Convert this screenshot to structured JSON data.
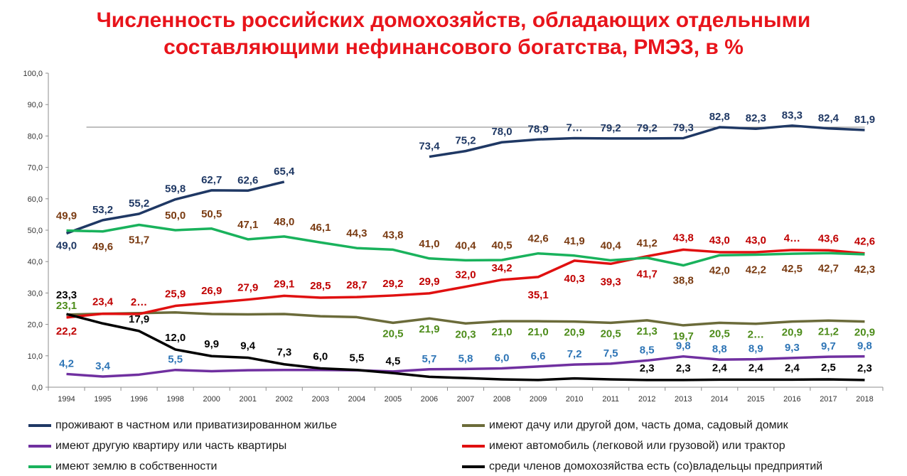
{
  "title": {
    "line1": "Численность российских домохозяйств, обладающих отдельными",
    "line2": "составляющими нефинансового богатства, РМЭЗ, в %"
  },
  "chart_data": {
    "type": "line",
    "x": [
      "1994",
      "1995",
      "1996",
      "1998",
      "2000",
      "2001",
      "2002",
      "2003",
      "2004",
      "2005",
      "2006",
      "2007",
      "2008",
      "2009",
      "2010",
      "2011",
      "2012",
      "2013",
      "2014",
      "2015",
      "2016",
      "2017",
      "2018"
    ],
    "ylim": [
      0,
      100
    ],
    "yticks": [
      "0,0",
      "10,0",
      "20,0",
      "30,0",
      "40,0",
      "50,0",
      "60,0",
      "70,0",
      "80,0",
      "90,0",
      "100,0"
    ],
    "grid": false,
    "legend_position": "bottom",
    "series": [
      {
        "name": "проживают в частном или приватизированном жилье",
        "color": "#1f3864",
        "values": [
          49.0,
          53.2,
          55.2,
          59.8,
          62.7,
          62.6,
          65.4,
          null,
          null,
          null,
          73.4,
          75.2,
          78.0,
          78.9,
          79.3,
          79.2,
          79.2,
          79.3,
          82.8,
          82.3,
          83.3,
          82.4,
          81.9
        ],
        "labels": [
          "49,0",
          "53,2",
          "55,2",
          "59,8",
          "62,7",
          "62,6",
          "65,4",
          "",
          "",
          "",
          "73,4",
          "75,2",
          "78,0",
          "78,9",
          "7…",
          "79,2",
          "79,2",
          "79,3",
          "82,8",
          "82,3",
          "83,3",
          "82,4",
          "81,9"
        ]
      },
      {
        "name": "имеют дачу или другой дом, часть дома, садовый домик",
        "color": "#6b6b3a",
        "values": [
          23.1,
          23.4,
          23.6,
          23.8,
          23.3,
          23.2,
          23.3,
          22.6,
          22.3,
          20.5,
          21.9,
          20.3,
          21.0,
          21.0,
          20.9,
          20.5,
          21.3,
          19.7,
          20.5,
          20.2,
          20.9,
          21.2,
          20.9
        ],
        "labels": [
          "23,1",
          "",
          "",
          "",
          "",
          "",
          "",
          "",
          "",
          "20,5",
          "21,9",
          "20,3",
          "21,0",
          "21,0",
          "20,9",
          "20,5",
          "21,3",
          "19,7",
          "20,5",
          "2…",
          "20,9",
          "21,2",
          "20,9"
        ]
      },
      {
        "name": "имеют другую квартиру или часть квартиры",
        "color": "#7030a0",
        "values": [
          4.2,
          3.4,
          4.0,
          5.5,
          5.1,
          5.4,
          5.5,
          5.5,
          5.4,
          5.0,
          5.7,
          5.8,
          6.0,
          6.6,
          7.2,
          7.5,
          8.5,
          9.8,
          8.8,
          8.9,
          9.3,
          9.7,
          9.8
        ],
        "labels": [
          "4,2",
          "3,4",
          "",
          "5,5",
          "",
          "",
          "",
          "",
          "",
          "",
          "5,7",
          "5,8",
          "6,0",
          "6,6",
          "7,2",
          "7,5",
          "8,5",
          "9,8",
          "8,8",
          "8,9",
          "9,3",
          "9,7",
          "9,8"
        ]
      },
      {
        "name": "имеют автомобиль (легковой или грузовой) или трактор",
        "color": "#e01010",
        "values": [
          22.2,
          23.4,
          23.3,
          25.9,
          26.9,
          27.9,
          29.1,
          28.5,
          28.7,
          29.2,
          29.9,
          32.0,
          34.2,
          35.1,
          40.3,
          39.3,
          41.7,
          43.8,
          43.0,
          43.0,
          43.7,
          43.6,
          42.6
        ],
        "labels": [
          "22,2",
          "23,4",
          "2…",
          "25,9",
          "26,9",
          "27,9",
          "29,1",
          "28,5",
          "28,7",
          "29,2",
          "29,9",
          "32,0",
          "34,2",
          "35,1",
          "40,3",
          "39,3",
          "41,7",
          "43,8",
          "43,0",
          "43,0",
          "4…",
          "43,6",
          "42,6"
        ]
      },
      {
        "name": "имеют землю в собственности",
        "color": "#19b25c",
        "values": [
          49.9,
          49.6,
          51.7,
          50.0,
          50.5,
          47.1,
          48.0,
          46.1,
          44.3,
          43.8,
          41.0,
          40.4,
          40.5,
          42.6,
          41.9,
          40.4,
          41.2,
          38.8,
          42.0,
          42.2,
          42.5,
          42.7,
          42.3
        ],
        "labels": [
          "49,9",
          "49,6",
          "51,7",
          "50,0",
          "50,5",
          "47,1",
          "48,0",
          "46,1",
          "44,3",
          "43,8",
          "41,0",
          "40,4",
          "40,5",
          "42,6",
          "41,9",
          "40,4",
          "41,2",
          "38,8",
          "42,0",
          "42,2",
          "42,5",
          "42,7",
          "42,3"
        ]
      },
      {
        "name": "среди членов домохозяйства есть (со)владельцы предприятий",
        "color": "#000000",
        "values": [
          23.3,
          20.3,
          17.9,
          12.0,
          9.9,
          9.4,
          7.3,
          6.0,
          5.5,
          4.5,
          3.3,
          2.9,
          2.5,
          2.3,
          2.8,
          2.5,
          2.3,
          2.3,
          2.4,
          2.4,
          2.4,
          2.5,
          2.3
        ],
        "labels": [
          "23,3",
          "",
          "17,9",
          "12,0",
          "9,9",
          "9,4",
          "7,3",
          "6,0",
          "5,5",
          "4,5",
          "",
          "",
          "",
          "",
          "",
          "",
          "2,3",
          "2,3",
          "2,4",
          "2,4",
          "2,4",
          "2,5",
          "2,3"
        ]
      }
    ]
  }
}
